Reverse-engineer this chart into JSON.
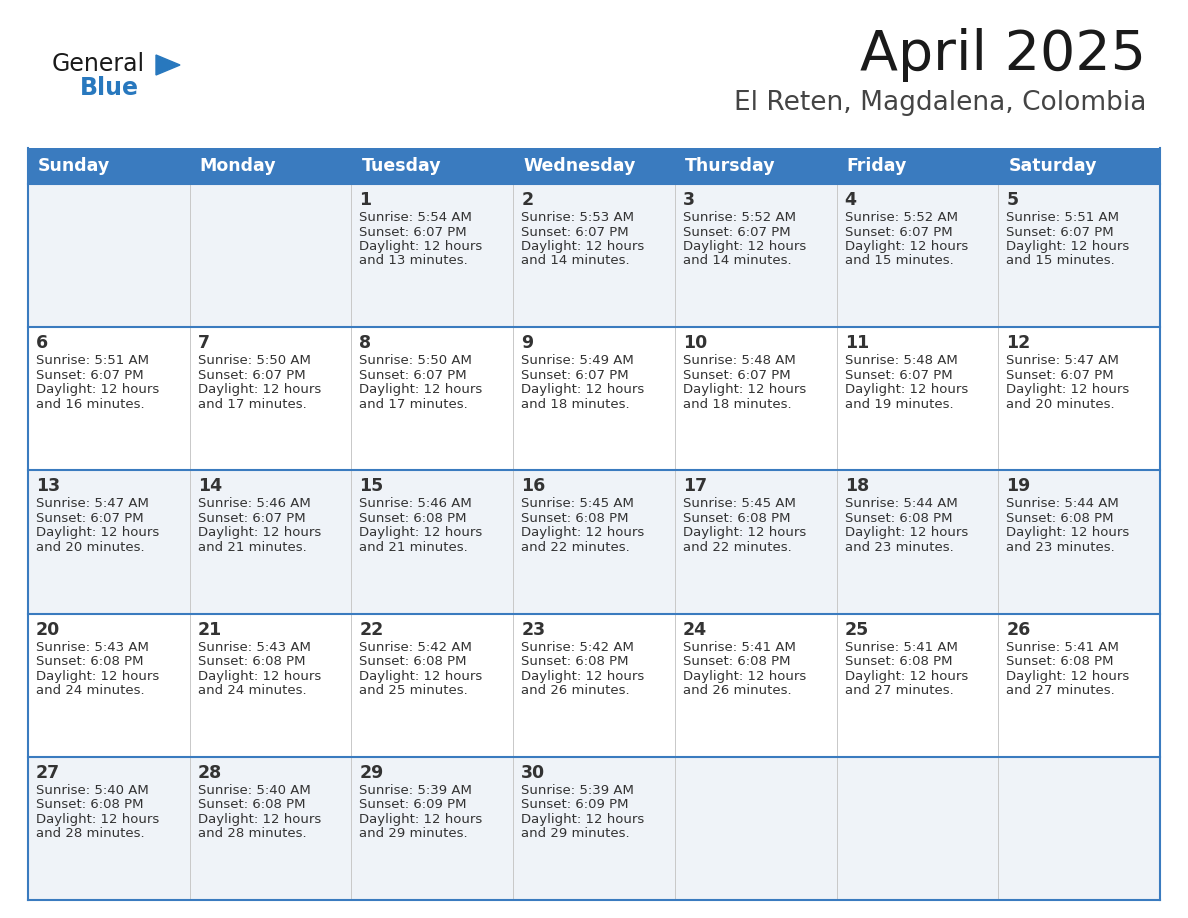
{
  "title": "April 2025",
  "subtitle": "El Reten, Magdalena, Colombia",
  "header_color": "#3a7bbf",
  "header_text_color": "#ffffff",
  "border_color": "#3a7bbf",
  "text_color": "#333333",
  "row_bg_even": "#eff3f8",
  "row_bg_odd": "#ffffff",
  "days_of_week": [
    "Sunday",
    "Monday",
    "Tuesday",
    "Wednesday",
    "Thursday",
    "Friday",
    "Saturday"
  ],
  "calendar_data": [
    [
      {
        "day": "",
        "sunrise": "",
        "sunset": "",
        "daylight": ""
      },
      {
        "day": "",
        "sunrise": "",
        "sunset": "",
        "daylight": ""
      },
      {
        "day": "1",
        "sunrise": "5:54 AM",
        "sunset": "6:07 PM",
        "daylight": "12 hours and 13 minutes."
      },
      {
        "day": "2",
        "sunrise": "5:53 AM",
        "sunset": "6:07 PM",
        "daylight": "12 hours and 14 minutes."
      },
      {
        "day": "3",
        "sunrise": "5:52 AM",
        "sunset": "6:07 PM",
        "daylight": "12 hours and 14 minutes."
      },
      {
        "day": "4",
        "sunrise": "5:52 AM",
        "sunset": "6:07 PM",
        "daylight": "12 hours and 15 minutes."
      },
      {
        "day": "5",
        "sunrise": "5:51 AM",
        "sunset": "6:07 PM",
        "daylight": "12 hours and 15 minutes."
      }
    ],
    [
      {
        "day": "6",
        "sunrise": "5:51 AM",
        "sunset": "6:07 PM",
        "daylight": "12 hours and 16 minutes."
      },
      {
        "day": "7",
        "sunrise": "5:50 AM",
        "sunset": "6:07 PM",
        "daylight": "12 hours and 17 minutes."
      },
      {
        "day": "8",
        "sunrise": "5:50 AM",
        "sunset": "6:07 PM",
        "daylight": "12 hours and 17 minutes."
      },
      {
        "day": "9",
        "sunrise": "5:49 AM",
        "sunset": "6:07 PM",
        "daylight": "12 hours and 18 minutes."
      },
      {
        "day": "10",
        "sunrise": "5:48 AM",
        "sunset": "6:07 PM",
        "daylight": "12 hours and 18 minutes."
      },
      {
        "day": "11",
        "sunrise": "5:48 AM",
        "sunset": "6:07 PM",
        "daylight": "12 hours and 19 minutes."
      },
      {
        "day": "12",
        "sunrise": "5:47 AM",
        "sunset": "6:07 PM",
        "daylight": "12 hours and 20 minutes."
      }
    ],
    [
      {
        "day": "13",
        "sunrise": "5:47 AM",
        "sunset": "6:07 PM",
        "daylight": "12 hours and 20 minutes."
      },
      {
        "day": "14",
        "sunrise": "5:46 AM",
        "sunset": "6:07 PM",
        "daylight": "12 hours and 21 minutes."
      },
      {
        "day": "15",
        "sunrise": "5:46 AM",
        "sunset": "6:08 PM",
        "daylight": "12 hours and 21 minutes."
      },
      {
        "day": "16",
        "sunrise": "5:45 AM",
        "sunset": "6:08 PM",
        "daylight": "12 hours and 22 minutes."
      },
      {
        "day": "17",
        "sunrise": "5:45 AM",
        "sunset": "6:08 PM",
        "daylight": "12 hours and 22 minutes."
      },
      {
        "day": "18",
        "sunrise": "5:44 AM",
        "sunset": "6:08 PM",
        "daylight": "12 hours and 23 minutes."
      },
      {
        "day": "19",
        "sunrise": "5:44 AM",
        "sunset": "6:08 PM",
        "daylight": "12 hours and 23 minutes."
      }
    ],
    [
      {
        "day": "20",
        "sunrise": "5:43 AM",
        "sunset": "6:08 PM",
        "daylight": "12 hours and 24 minutes."
      },
      {
        "day": "21",
        "sunrise": "5:43 AM",
        "sunset": "6:08 PM",
        "daylight": "12 hours and 24 minutes."
      },
      {
        "day": "22",
        "sunrise": "5:42 AM",
        "sunset": "6:08 PM",
        "daylight": "12 hours and 25 minutes."
      },
      {
        "day": "23",
        "sunrise": "5:42 AM",
        "sunset": "6:08 PM",
        "daylight": "12 hours and 26 minutes."
      },
      {
        "day": "24",
        "sunrise": "5:41 AM",
        "sunset": "6:08 PM",
        "daylight": "12 hours and 26 minutes."
      },
      {
        "day": "25",
        "sunrise": "5:41 AM",
        "sunset": "6:08 PM",
        "daylight": "12 hours and 27 minutes."
      },
      {
        "day": "26",
        "sunrise": "5:41 AM",
        "sunset": "6:08 PM",
        "daylight": "12 hours and 27 minutes."
      }
    ],
    [
      {
        "day": "27",
        "sunrise": "5:40 AM",
        "sunset": "6:08 PM",
        "daylight": "12 hours and 28 minutes."
      },
      {
        "day": "28",
        "sunrise": "5:40 AM",
        "sunset": "6:08 PM",
        "daylight": "12 hours and 28 minutes."
      },
      {
        "day": "29",
        "sunrise": "5:39 AM",
        "sunset": "6:09 PM",
        "daylight": "12 hours and 29 minutes."
      },
      {
        "day": "30",
        "sunrise": "5:39 AM",
        "sunset": "6:09 PM",
        "daylight": "12 hours and 29 minutes."
      },
      {
        "day": "",
        "sunrise": "",
        "sunset": "",
        "daylight": ""
      },
      {
        "day": "",
        "sunrise": "",
        "sunset": "",
        "daylight": ""
      },
      {
        "day": "",
        "sunrise": "",
        "sunset": "",
        "daylight": ""
      }
    ]
  ],
  "logo_general_color": "#1a1a1a",
  "logo_blue_color": "#2878be",
  "figsize": [
    11.88,
    9.18
  ],
  "dpi": 100
}
